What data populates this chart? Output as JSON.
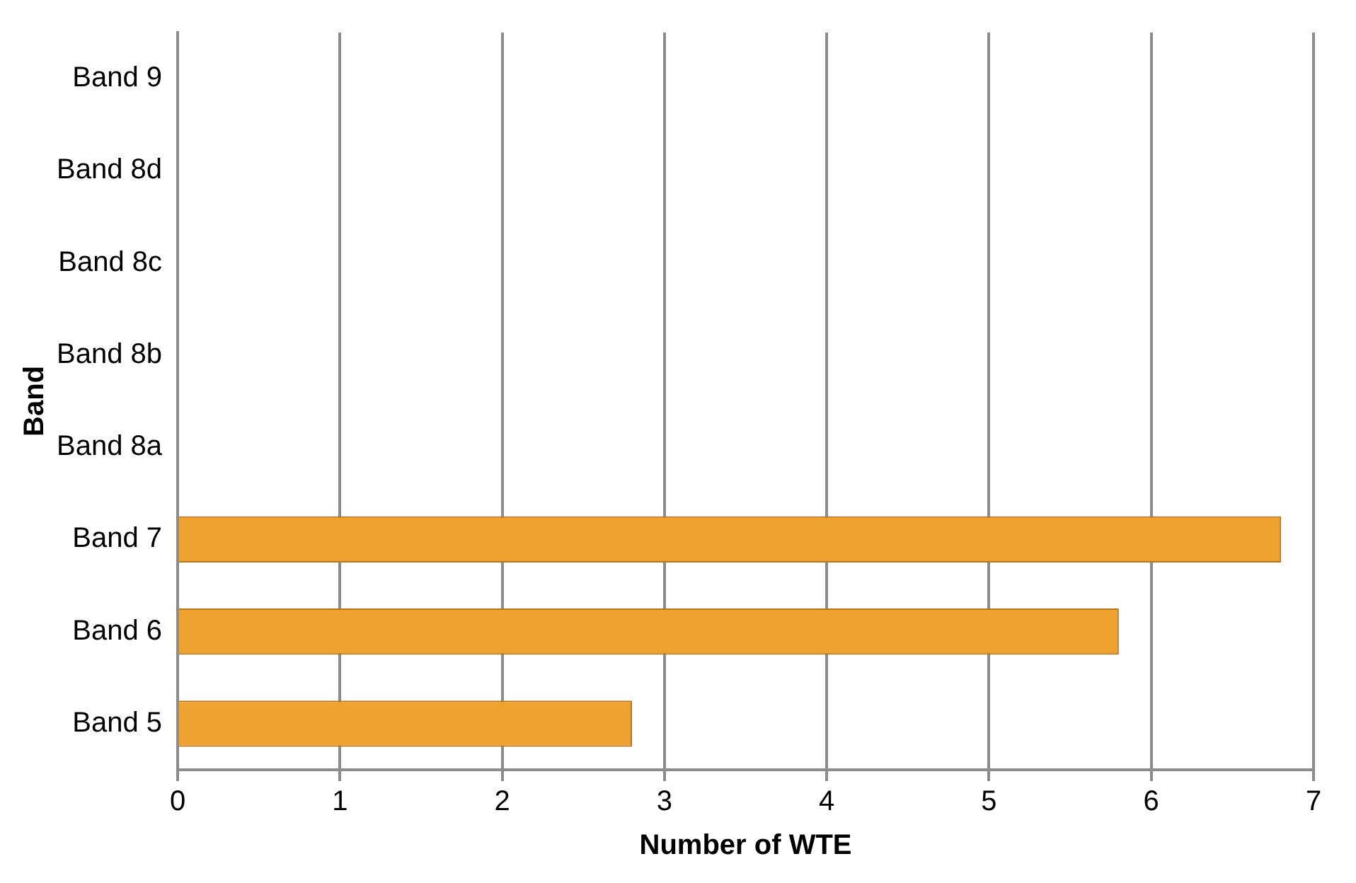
{
  "chart_data": {
    "type": "bar",
    "orientation": "horizontal",
    "xlabel": "Number of WTE",
    "ylabel": "Band",
    "categories": [
      "Band 9",
      "Band 8d",
      "Band 8c",
      "Band 8b",
      "Band 8a",
      "Band 7",
      "Band 6",
      "Band 5"
    ],
    "values": [
      0,
      0,
      0,
      0,
      0,
      6.8,
      5.8,
      2.8
    ],
    "color": "#f0a22e",
    "xlim": [
      0,
      7
    ],
    "xticks": [
      0,
      1,
      2,
      3,
      4,
      5,
      6,
      7
    ],
    "grid": "x",
    "legend": false
  }
}
